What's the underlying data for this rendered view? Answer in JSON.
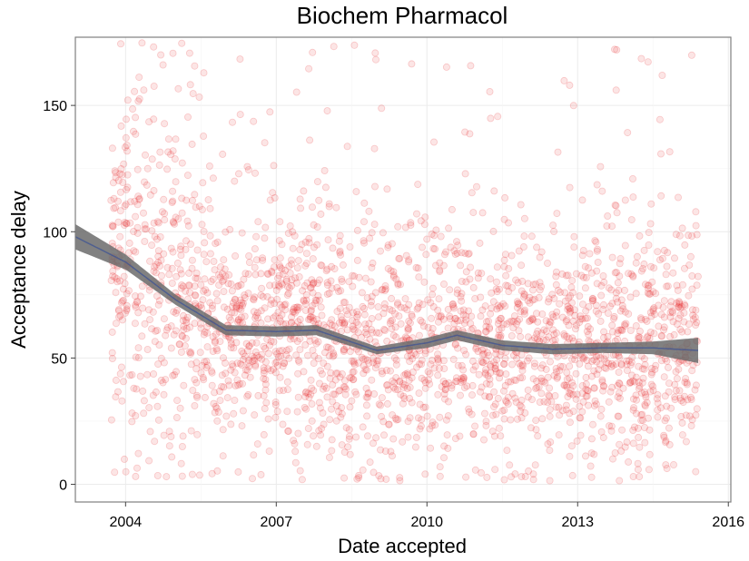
{
  "chart_data": {
    "type": "scatter",
    "title": "Biochem Pharmacol",
    "xlabel": "Date accepted",
    "ylabel": "Acceptance delay",
    "x_kind": "year",
    "xlim": [
      2003.0,
      2016.05
    ],
    "ylim": [
      -7,
      177
    ],
    "x_ticks": [
      2004,
      2007,
      2010,
      2013,
      2016
    ],
    "x_tick_labels": [
      "2004",
      "2007",
      "2010",
      "2013",
      "2016"
    ],
    "y_ticks": [
      0,
      50,
      100,
      150
    ],
    "y_tick_labels": [
      "0",
      "50",
      "100",
      "150"
    ],
    "grid": true,
    "legend": "none",
    "colors": {
      "points": "#e8282c",
      "smooth_band": "#6b6b6b",
      "smooth_line": "#2f4a9a",
      "grid_major": "#ebebeb",
      "grid_minor": "#f5f5f5",
      "panel_border": "#7f7f7f"
    },
    "scatter_points": {
      "approx_count": 2500,
      "x_range": [
        2003.7,
        2015.4
      ],
      "typical_range": [
        15,
        110
      ],
      "outlier_max": 175,
      "note": "Dense semi-transparent red points; early years (2003.7-2005.5) reach up to ~175"
    },
    "series": [
      {
        "kind": "smooth",
        "x": [
          2003.0,
          2004.0,
          2005.0,
          2006.0,
          2007.0,
          2007.8,
          2009.0,
          2010.0,
          2010.6,
          2011.5,
          2012.5,
          2013.5,
          2014.5,
          2015.4
        ],
        "y": [
          98,
          88,
          73,
          61,
          60.5,
          61,
          53,
          56,
          59,
          55,
          53.5,
          54,
          54,
          53
        ],
        "band_halfwidth": [
          5,
          3,
          2,
          2,
          2,
          2,
          1.5,
          2,
          2,
          2,
          2,
          2,
          2.5,
          5
        ]
      }
    ]
  }
}
